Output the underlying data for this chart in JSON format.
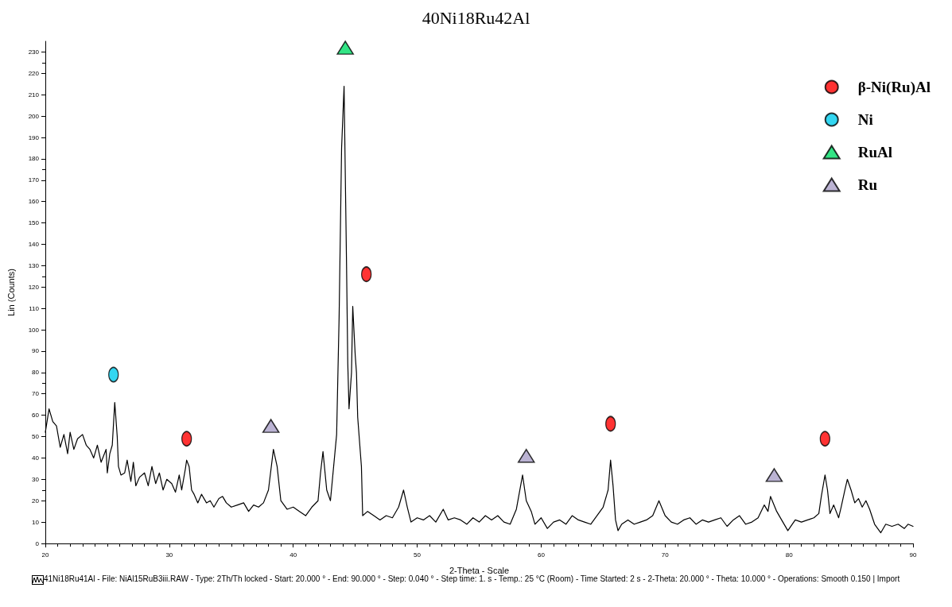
{
  "chart_data": {
    "type": "line",
    "title": "40Ni18Ru42Al",
    "xlabel": "2-Theta - Scale",
    "ylabel": "Lin (Counts)",
    "annotations": [
      "41Ni18Ru41Al - File: NiAl15RuB3iii.RAW - Type: 2Th/Th locked - Start: 20.000 ° - End: 90.000 ° - Step: 0.040 ° - Step time: 1. s - Temp.: 25 °C (Room) - Time Started: 2 s - 2-Theta: 20.000 ° - Theta: 10.000 ° - Operations: Smooth 0.150 | Import"
    ],
    "xlim": [
      20,
      90
    ],
    "xticks": [
      20,
      30,
      40,
      50,
      60,
      70,
      80,
      90
    ],
    "ylim": [
      0,
      235
    ],
    "yticks": [
      0,
      10,
      20,
      30,
      40,
      50,
      60,
      70,
      80,
      90,
      100,
      110,
      120,
      130,
      140,
      150,
      160,
      170,
      180,
      190,
      200,
      210,
      220,
      230
    ],
    "grid": false,
    "legend": "top right",
    "series": [
      {
        "color": "#000000",
        "marker": "none",
        "line_style": "solid",
        "x": [
          20.0,
          20.3,
          20.6,
          20.9,
          21.2,
          21.5,
          21.8,
          22.0,
          22.3,
          22.6,
          23.0,
          23.3,
          23.6,
          23.9,
          24.2,
          24.5,
          24.9,
          25.0,
          25.2,
          25.4,
          25.6,
          25.8,
          25.9,
          26.1,
          26.4,
          26.6,
          26.9,
          27.1,
          27.3,
          27.6,
          28.0,
          28.3,
          28.6,
          28.9,
          29.2,
          29.5,
          29.8,
          30.2,
          30.5,
          30.8,
          31.0,
          31.3,
          31.4,
          31.6,
          31.8,
          32.0,
          32.3,
          32.6,
          33.0,
          33.3,
          33.6,
          34.0,
          34.3,
          34.6,
          35.0,
          35.5,
          36.0,
          36.4,
          36.8,
          37.2,
          37.6,
          38.0,
          38.4,
          38.7,
          39.0,
          39.5,
          40.0,
          40.5,
          41.0,
          41.5,
          42.0,
          42.2,
          42.4,
          42.7,
          43.0,
          43.5,
          43.7,
          43.9,
          44.1,
          44.3,
          44.4,
          44.5,
          44.7,
          44.8,
          45.0,
          45.1,
          45.2,
          45.5,
          45.6,
          46.0,
          46.5,
          47.0,
          47.5,
          48.0,
          48.5,
          48.9,
          49.2,
          49.5,
          50.0,
          50.5,
          51.0,
          51.5,
          52.1,
          52.5,
          53.0,
          53.5,
          54.0,
          54.5,
          55.0,
          55.5,
          56.0,
          56.5,
          57.0,
          57.5,
          58.0,
          58.5,
          58.8,
          59.2,
          59.5,
          60.0,
          60.5,
          61.0,
          61.5,
          62.0,
          62.5,
          63.0,
          63.5,
          64.0,
          64.5,
          65.0,
          65.4,
          65.6,
          65.8,
          66.0,
          66.2,
          66.5,
          67.0,
          67.5,
          68.0,
          68.5,
          69.0,
          69.5,
          70.0,
          70.5,
          71.0,
          71.5,
          72.0,
          72.5,
          73.0,
          73.5,
          74.0,
          74.5,
          75.0,
          75.5,
          76.0,
          76.5,
          77.0,
          77.5,
          78.0,
          78.3,
          78.5,
          79.0,
          79.5,
          79.9,
          80.5,
          81.0,
          81.5,
          82.0,
          82.4,
          82.6,
          82.9,
          83.1,
          83.3,
          83.6,
          84.0,
          84.2,
          84.5,
          84.7,
          85.0,
          85.3,
          85.6,
          85.9,
          86.2,
          86.5,
          86.9,
          87.4,
          87.8,
          88.3,
          88.8,
          89.3,
          89.6,
          90.0
        ],
        "values": [
          52,
          63,
          57,
          55,
          45,
          51,
          42,
          52,
          44,
          49,
          51,
          46,
          44,
          40,
          46,
          38,
          44,
          33,
          42,
          46,
          66,
          50,
          36,
          32,
          33,
          39,
          29,
          38,
          27,
          31,
          33,
          27,
          36,
          28,
          33,
          25,
          30,
          28,
          24,
          32,
          25,
          35,
          39,
          36,
          25,
          23,
          19,
          23,
          19,
          20,
          17,
          21,
          22,
          19,
          17,
          18,
          19,
          15,
          18,
          17,
          19,
          25,
          44,
          36,
          20,
          16,
          17,
          15,
          13,
          17,
          20,
          33,
          43,
          25,
          20,
          51,
          106,
          185,
          214,
          130,
          84,
          63,
          80,
          111,
          88,
          80,
          59,
          36,
          13,
          15,
          13,
          11,
          13,
          12,
          17,
          25,
          17,
          10,
          12,
          11,
          13,
          10,
          16,
          11,
          12,
          11,
          9,
          12,
          10,
          13,
          11,
          13,
          10,
          9,
          16,
          32,
          20,
          15,
          9,
          12,
          7,
          10,
          11,
          9,
          13,
          11,
          10,
          9,
          13,
          17,
          25,
          39,
          27,
          11,
          6,
          9,
          11,
          9,
          10,
          11,
          13,
          20,
          13,
          10,
          9,
          11,
          12,
          9,
          11,
          10,
          11,
          12,
          8,
          11,
          13,
          9,
          10,
          12,
          18,
          15,
          22,
          15,
          10,
          6,
          11,
          10,
          11,
          12,
          14,
          22,
          32,
          25,
          14,
          18,
          12,
          17,
          25,
          30,
          25,
          19,
          21,
          17,
          20,
          16,
          9,
          5,
          9,
          8,
          9,
          7,
          9,
          8
        ]
      },
      {
        "type": "scatter",
        "name": "β-Ni(Ru)Al",
        "color": "#ff0000",
        "marker": "circle",
        "x": [
          31.4,
          45.9,
          65.6,
          82.9
        ],
        "values": [
          49,
          126,
          56,
          49
        ]
      },
      {
        "type": "scatter",
        "name": "Ni",
        "color": "#00ccee",
        "marker": "circle",
        "x": [
          25.5
        ],
        "values": [
          79
        ]
      },
      {
        "type": "scatter",
        "name": "RuAl",
        "color": "#00dd66",
        "marker": "triangle",
        "x": [
          44.2
        ],
        "values": [
          232
        ]
      },
      {
        "type": "scatter",
        "name": "Ru",
        "color": "#aaa0c8",
        "marker": "triangle",
        "x": [
          38.2,
          58.8,
          78.8
        ],
        "values": [
          55,
          41,
          32
        ]
      }
    ]
  }
}
